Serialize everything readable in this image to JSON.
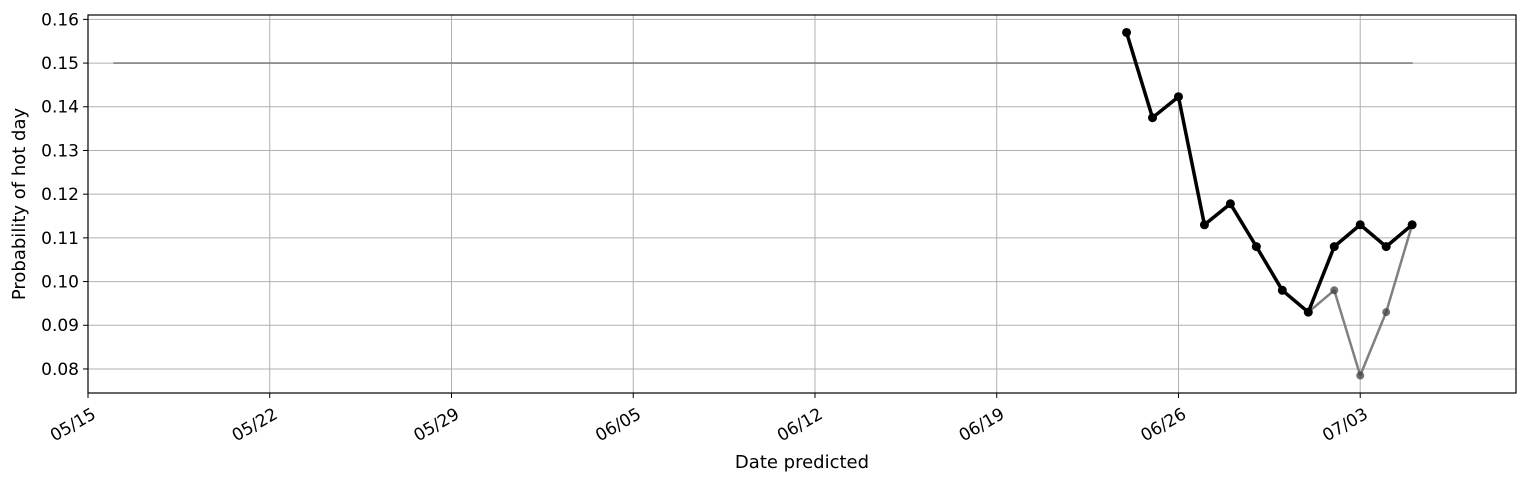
{
  "chart_data": {
    "type": "line",
    "title": "",
    "xlabel": "Date predicted",
    "ylabel": "Probability of hot day",
    "xlim": [
      "2024-05-15",
      "2024-07-09"
    ],
    "ylim": [
      0.0745,
      0.161
    ],
    "grid": true,
    "legend": "none",
    "x_ticks": [
      {
        "date": "2024-05-15",
        "label": "05/15"
      },
      {
        "date": "2024-05-22",
        "label": "05/22"
      },
      {
        "date": "2024-05-29",
        "label": "05/29"
      },
      {
        "date": "2024-06-05",
        "label": "06/05"
      },
      {
        "date": "2024-06-12",
        "label": "06/12"
      },
      {
        "date": "2024-06-19",
        "label": "06/19"
      },
      {
        "date": "2024-06-26",
        "label": "06/26"
      },
      {
        "date": "2024-07-03",
        "label": "07/03"
      }
    ],
    "y_ticks": [
      0.08,
      0.09,
      0.1,
      0.11,
      0.12,
      0.13,
      0.14,
      0.15,
      0.16
    ],
    "y_tick_labels": [
      "0.08",
      "0.09",
      "0.10",
      "0.11",
      "0.12",
      "0.13",
      "0.14",
      "0.15",
      "0.16"
    ],
    "series": [
      {
        "color": "#808080",
        "markers": false,
        "x": [
          "2024-05-16",
          "2024-07-05"
        ],
        "y": [
          0.15,
          0.15
        ]
      },
      {
        "color": "#808080",
        "markers": true,
        "x": [
          "2024-07-01",
          "2024-07-02",
          "2024-07-03",
          "2024-07-04",
          "2024-07-05"
        ],
        "y": [
          0.093,
          0.098,
          0.0785,
          0.093,
          0.113
        ]
      },
      {
        "color": "#000000",
        "markers": true,
        "x": [
          "2024-06-24",
          "2024-06-25",
          "2024-06-26",
          "2024-06-27",
          "2024-06-28",
          "2024-06-29",
          "2024-06-30",
          "2024-07-01",
          "2024-07-02",
          "2024-07-03",
          "2024-07-04",
          "2024-07-05"
        ],
        "y": [
          0.157,
          0.1375,
          0.1423,
          0.113,
          0.1178,
          0.108,
          0.098,
          0.093,
          0.108,
          0.113,
          0.108,
          0.113
        ]
      }
    ]
  }
}
